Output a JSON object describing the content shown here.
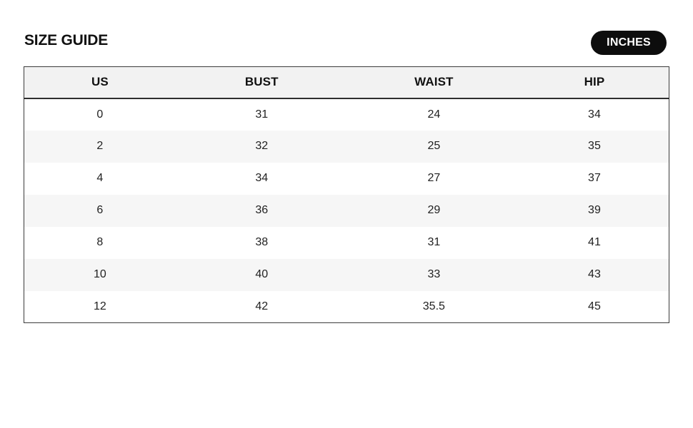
{
  "page": {
    "title": "SIZE GUIDE"
  },
  "unit_toggle": {
    "label": "INCHES"
  },
  "size_table": {
    "columns": [
      "US",
      "BUST",
      "WAIST",
      "HIP"
    ],
    "rows": [
      [
        "0",
        "31",
        "24",
        "34"
      ],
      [
        "2",
        "32",
        "25",
        "35"
      ],
      [
        "4",
        "34",
        "27",
        "37"
      ],
      [
        "6",
        "36",
        "29",
        "39"
      ],
      [
        "8",
        "38",
        "31",
        "41"
      ],
      [
        "10",
        "40",
        "33",
        "43"
      ],
      [
        "12",
        "42",
        "35.5",
        "45"
      ]
    ]
  },
  "colors": {
    "badge_bg": "#0d0d0d",
    "badge_text": "#ffffff",
    "header_bg": "#f2f2f2",
    "stripe_bg": "#f6f6f6",
    "table_border": "#3c3c3c",
    "text": "#111111"
  }
}
